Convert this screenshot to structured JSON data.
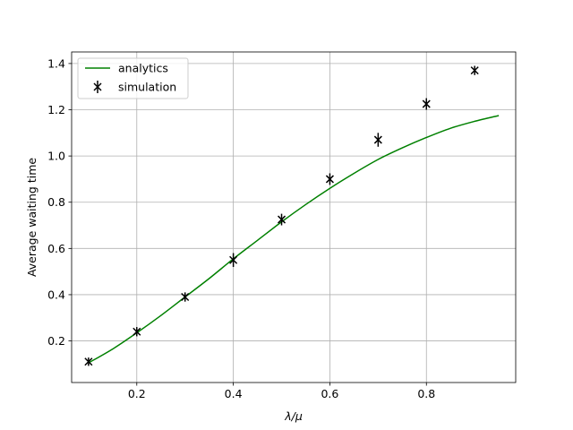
{
  "chart_data": {
    "type": "line",
    "title": "",
    "xlabel": "λ/μ",
    "ylabel": "Average waiting time",
    "xlim": [
      0.065,
      0.985
    ],
    "ylim": [
      0.02,
      1.45
    ],
    "xticks": [
      0.2,
      0.4,
      0.6,
      0.8
    ],
    "xtick_labels": [
      "0.2",
      "0.4",
      "0.6",
      "0.8"
    ],
    "yticks": [
      0.2,
      0.4,
      0.6,
      0.8,
      1.0,
      1.2,
      1.4
    ],
    "ytick_labels": [
      "0.2",
      "0.4",
      "0.6",
      "0.8",
      "1.0",
      "1.2",
      "1.4"
    ],
    "grid": true,
    "legend_position": "top-left",
    "series": [
      {
        "name": "analytics",
        "kind": "line",
        "color": "#008000",
        "x": [
          0.1,
          0.15,
          0.2,
          0.25,
          0.3,
          0.35,
          0.4,
          0.45,
          0.5,
          0.55,
          0.6,
          0.65,
          0.7,
          0.75,
          0.8,
          0.85,
          0.9,
          0.95
        ],
        "y": [
          0.105,
          0.165,
          0.235,
          0.31,
          0.39,
          0.47,
          0.555,
          0.635,
          0.715,
          0.79,
          0.86,
          0.925,
          0.985,
          1.035,
          1.08,
          1.12,
          1.15,
          1.175
        ]
      },
      {
        "name": "simulation",
        "kind": "errorbar",
        "color": "#000000",
        "marker": "x",
        "x": [
          0.1,
          0.2,
          0.3,
          0.4,
          0.5,
          0.6,
          0.7,
          0.8,
          0.9
        ],
        "y": [
          0.11,
          0.24,
          0.39,
          0.55,
          0.725,
          0.9,
          1.07,
          1.225,
          1.37
        ],
        "err": [
          0.018,
          0.02,
          0.02,
          0.03,
          0.025,
          0.025,
          0.03,
          0.025,
          0.02
        ]
      }
    ]
  }
}
